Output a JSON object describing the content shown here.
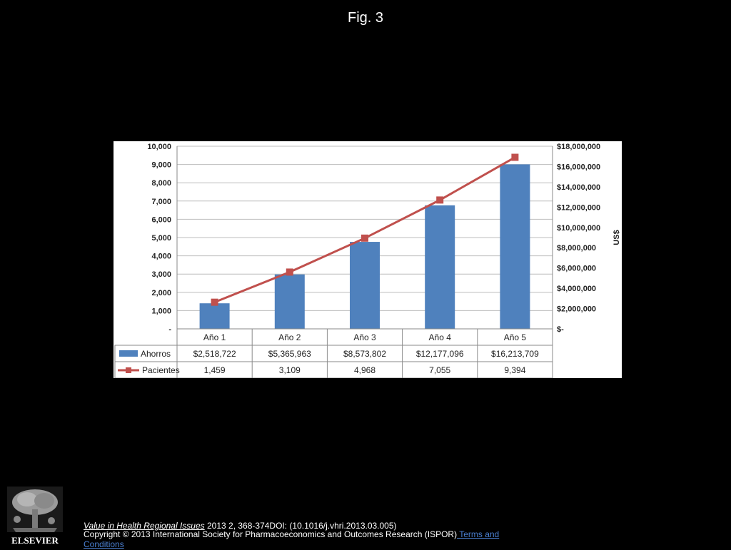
{
  "figure": {
    "title": "Fig. 3"
  },
  "chart_data": {
    "type": "bar",
    "categories": [
      "Año 1",
      "Año 2",
      "Año 3",
      "Año 4",
      "Año 5"
    ],
    "series": [
      {
        "name": "Ahorros",
        "kind": "bar",
        "axis": "right",
        "values": [
          2518722,
          5365963,
          8573802,
          12177096,
          16213709
        ],
        "value_labels": [
          "$2,518,722",
          "$5,365,963",
          "$8,573,802",
          "$12,177,096",
          "$16,213,709"
        ],
        "color": "#4f81bd"
      },
      {
        "name": "Pacientes",
        "kind": "line",
        "axis": "left",
        "values": [
          1459,
          3109,
          4968,
          7055,
          9394
        ],
        "value_labels": [
          "1,459",
          "3,109",
          "4,968",
          "7,055",
          "9,394"
        ],
        "color": "#c0504d"
      }
    ],
    "left_axis": {
      "range": [
        0,
        10000
      ],
      "ticks": [
        0,
        1000,
        2000,
        3000,
        4000,
        5000,
        6000,
        7000,
        8000,
        9000,
        10000
      ],
      "tick_labels": [
        "-",
        "1,000",
        "2,000",
        "3,000",
        "4,000",
        "5,000",
        "6,000",
        "7,000",
        "8,000",
        "9,000",
        "10,000"
      ]
    },
    "right_axis": {
      "label": "US$",
      "range": [
        0,
        18000000
      ],
      "ticks": [
        0,
        2000000,
        4000000,
        6000000,
        8000000,
        10000000,
        12000000,
        14000000,
        16000000,
        18000000
      ],
      "tick_labels": [
        "$-",
        "$2,000,000",
        "$4,000,000",
        "$6,000,000",
        "$8,000,000",
        "$10,000,000",
        "$12,000,000",
        "$14,000,000",
        "$16,000,000",
        "$18,000,000"
      ]
    },
    "grid": true,
    "legend": "data-table-below"
  },
  "footer": {
    "publisher": "ELSEVIER",
    "journal": "Value in Health Regional Issues",
    "citation": " 2013 2, 368-374DOI: (10.1016/j.vhri.2013.03.005)",
    "copyright": "Copyright © 2013 International Society for Pharmacoeconomics and Outcomes Research (ISPOR)",
    "terms_link": " Terms and Conditions"
  }
}
